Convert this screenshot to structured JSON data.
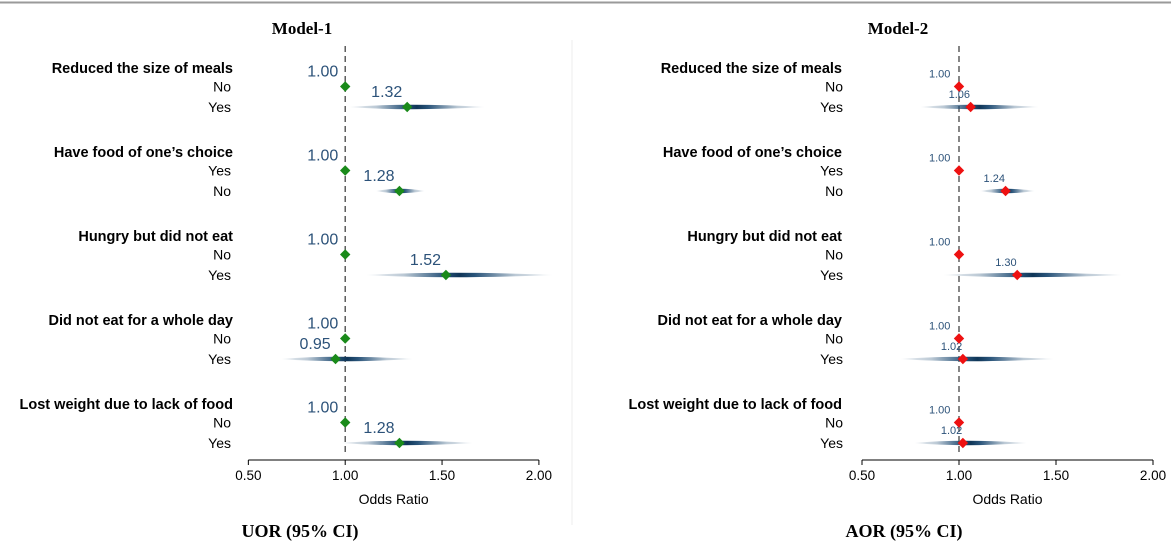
{
  "chart_data": [
    {
      "type": "scatter",
      "title": "Model-1",
      "caption": "UOR (95% CI)",
      "xlabel": "Odds Ratio",
      "xlim": [
        0.5,
        2.0
      ],
      "xticks": [
        "0.50",
        "1.00",
        "1.50",
        "2.00"
      ],
      "reference_line": 1.0,
      "marker_color": "#1a8a1a",
      "groups": [
        {
          "label": "Reduced the size of meals",
          "rows": [
            {
              "category": "No",
              "value": 1.0,
              "label": "1.00",
              "ci": null
            },
            {
              "category": "Yes",
              "value": 1.32,
              "label": "1.32",
              "ci": [
                1.02,
                1.72
              ]
            }
          ]
        },
        {
          "label": "Have food of one’s choice",
          "rows": [
            {
              "category": "Yes",
              "value": 1.0,
              "label": "1.00",
              "ci": null
            },
            {
              "category": "No",
              "value": 1.28,
              "label": "1.28",
              "ci": [
                1.16,
                1.41
              ]
            }
          ]
        },
        {
          "label": "Hungry but did not eat",
          "rows": [
            {
              "category": "No",
              "value": 1.0,
              "label": "1.00",
              "ci": null
            },
            {
              "category": "Yes",
              "value": 1.52,
              "label": "1.52",
              "ci": [
                1.11,
                2.07
              ]
            }
          ]
        },
        {
          "label": "Did not eat for a whole day",
          "rows": [
            {
              "category": "No",
              "value": 1.0,
              "label": "1.00",
              "ci": null
            },
            {
              "category": "Yes",
              "value": 0.95,
              "label": "0.95",
              "ci": [
                0.67,
                1.35
              ]
            }
          ]
        },
        {
          "label": "Lost weight due to lack of food",
          "rows": [
            {
              "category": "No",
              "value": 1.0,
              "label": "1.00",
              "ci": null
            },
            {
              "category": "Yes",
              "value": 1.28,
              "label": "1.28",
              "ci": [
                0.98,
                1.66
              ]
            }
          ]
        }
      ]
    },
    {
      "type": "scatter",
      "title": "Model-2",
      "caption": "AOR (95% CI)",
      "xlabel": "Odds Ratio",
      "xlim": [
        0.5,
        2.0
      ],
      "xticks": [
        "0.50",
        "1.00",
        "1.50",
        "2.00"
      ],
      "reference_line": 1.0,
      "marker_color": "#ee1111",
      "groups": [
        {
          "label": "Reduced the size of meals",
          "rows": [
            {
              "category": "No",
              "value": 1.0,
              "label": "1.00",
              "ci": null
            },
            {
              "category": "Yes",
              "value": 1.06,
              "label": "1.06",
              "ci": [
                0.8,
                1.41
              ]
            }
          ]
        },
        {
          "label": "Have food of one’s choice",
          "rows": [
            {
              "category": "Yes",
              "value": 1.0,
              "label": "1.00",
              "ci": null
            },
            {
              "category": "No",
              "value": 1.24,
              "label": "1.24",
              "ci": [
                1.11,
                1.39
              ]
            }
          ]
        },
        {
          "label": "Hungry but did not eat",
          "rows": [
            {
              "category": "No",
              "value": 1.0,
              "label": "1.00",
              "ci": null
            },
            {
              "category": "Yes",
              "value": 1.3,
              "label": "1.30",
              "ci": [
                0.92,
                1.84
              ]
            }
          ]
        },
        {
          "label": "Did not eat for a whole day",
          "rows": [
            {
              "category": "No",
              "value": 1.0,
              "label": "1.00",
              "ci": null
            },
            {
              "category": "Yes",
              "value": 1.02,
              "label": "1.02",
              "ci": [
                0.7,
                1.49
              ]
            }
          ]
        },
        {
          "label": "Lost weight due to lack of food",
          "rows": [
            {
              "category": "No",
              "value": 1.0,
              "label": "1.00",
              "ci": null
            },
            {
              "category": "Yes",
              "value": 1.02,
              "label": "1.02",
              "ci": [
                0.77,
                1.35
              ]
            }
          ]
        }
      ]
    }
  ]
}
